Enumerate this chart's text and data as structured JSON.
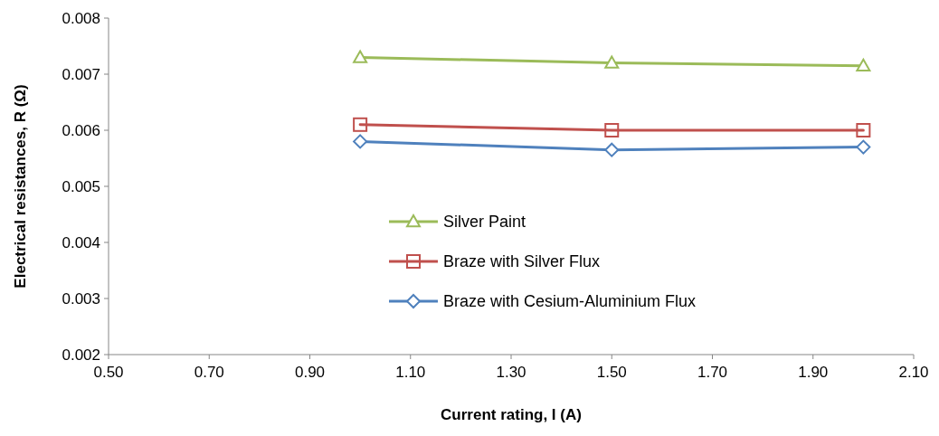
{
  "chart_data": {
    "type": "line",
    "xlabel": "Current rating, I (A)",
    "ylabel": "Electrical resistances, R (Ω)",
    "x": [
      1.0,
      1.5,
      2.0
    ],
    "series": [
      {
        "name": "Silver Paint",
        "color": "#9bbb59",
        "marker": "triangle",
        "values": [
          0.0073,
          0.0072,
          0.00715
        ]
      },
      {
        "name": "Braze with Silver Flux",
        "color": "#c0504d",
        "marker": "square",
        "values": [
          0.0061,
          0.006,
          0.006
        ]
      },
      {
        "name": "Braze with Cesium-Aluminium Flux",
        "color": "#4f81bd",
        "marker": "diamond",
        "values": [
          0.0058,
          0.00565,
          0.0057
        ]
      }
    ],
    "xlim": [
      0.5,
      2.1
    ],
    "xticks": [
      {
        "value": 0.5,
        "label": "0.50"
      },
      {
        "value": 0.7,
        "label": "0.70"
      },
      {
        "value": 0.9,
        "label": "0.90"
      },
      {
        "value": 1.1,
        "label": "1.10"
      },
      {
        "value": 1.3,
        "label": "1.30"
      },
      {
        "value": 1.5,
        "label": "1.50"
      },
      {
        "value": 1.7,
        "label": "1.70"
      },
      {
        "value": 1.9,
        "label": "1.90"
      },
      {
        "value": 2.1,
        "label": "2.10"
      }
    ],
    "ylim": [
      0.002,
      0.008
    ],
    "yticks": [
      0.002,
      0.003,
      0.004,
      0.005,
      0.006,
      0.007,
      0.008
    ],
    "grid": false,
    "legend": "bottom",
    "line_style": "solid"
  }
}
